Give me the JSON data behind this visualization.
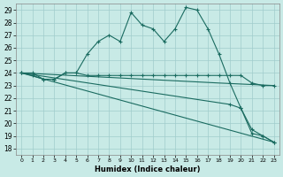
{
  "xlabel": "Humidex (Indice chaleur)",
  "bg_color": "#c8eae6",
  "grid_color": "#a0cccc",
  "line_color": "#1a6b60",
  "xlim": [
    -0.5,
    23.5
  ],
  "ylim": [
    17.5,
    29.5
  ],
  "yticks": [
    18,
    19,
    20,
    21,
    22,
    23,
    24,
    25,
    26,
    27,
    28,
    29
  ],
  "xticks": [
    0,
    1,
    2,
    3,
    4,
    5,
    6,
    7,
    8,
    9,
    10,
    11,
    12,
    13,
    14,
    15,
    16,
    17,
    18,
    19,
    20,
    21,
    22,
    23
  ],
  "line1_x": [
    0,
    1,
    2,
    3,
    4,
    5,
    6,
    7,
    8,
    9,
    10,
    11,
    12,
    13,
    14,
    15,
    16,
    17,
    18,
    19,
    20,
    21,
    22,
    23
  ],
  "line1_y": [
    24.0,
    24.0,
    23.5,
    23.5,
    24.0,
    24.0,
    25.5,
    26.5,
    27.0,
    26.5,
    28.8,
    27.8,
    27.5,
    26.5,
    27.5,
    29.2,
    29.0,
    27.5,
    25.5,
    23.2,
    21.2,
    19.2,
    19.0,
    18.5
  ],
  "line2_x": [
    0,
    1,
    2,
    3,
    4,
    5,
    6,
    7,
    8,
    9,
    10,
    11,
    12,
    13,
    14,
    15,
    16,
    17,
    18,
    19,
    20,
    21,
    22,
    23
  ],
  "line2_y": [
    24.0,
    23.8,
    23.5,
    23.5,
    24.0,
    24.0,
    23.8,
    23.8,
    23.8,
    23.8,
    23.8,
    23.8,
    23.8,
    23.8,
    23.8,
    23.8,
    23.8,
    23.8,
    23.8,
    23.8,
    23.8,
    23.2,
    23.0,
    23.0
  ],
  "line3_x": [
    0,
    18,
    23
  ],
  "line3_y": [
    24.0,
    23.2,
    23.0
  ],
  "line4_x": [
    0,
    19,
    20,
    21,
    22,
    23
  ],
  "line4_y": [
    24.0,
    21.5,
    21.2,
    19.5,
    19.0,
    18.5
  ],
  "line5_x": [
    0,
    23
  ],
  "line5_y": [
    24.0,
    18.5
  ]
}
